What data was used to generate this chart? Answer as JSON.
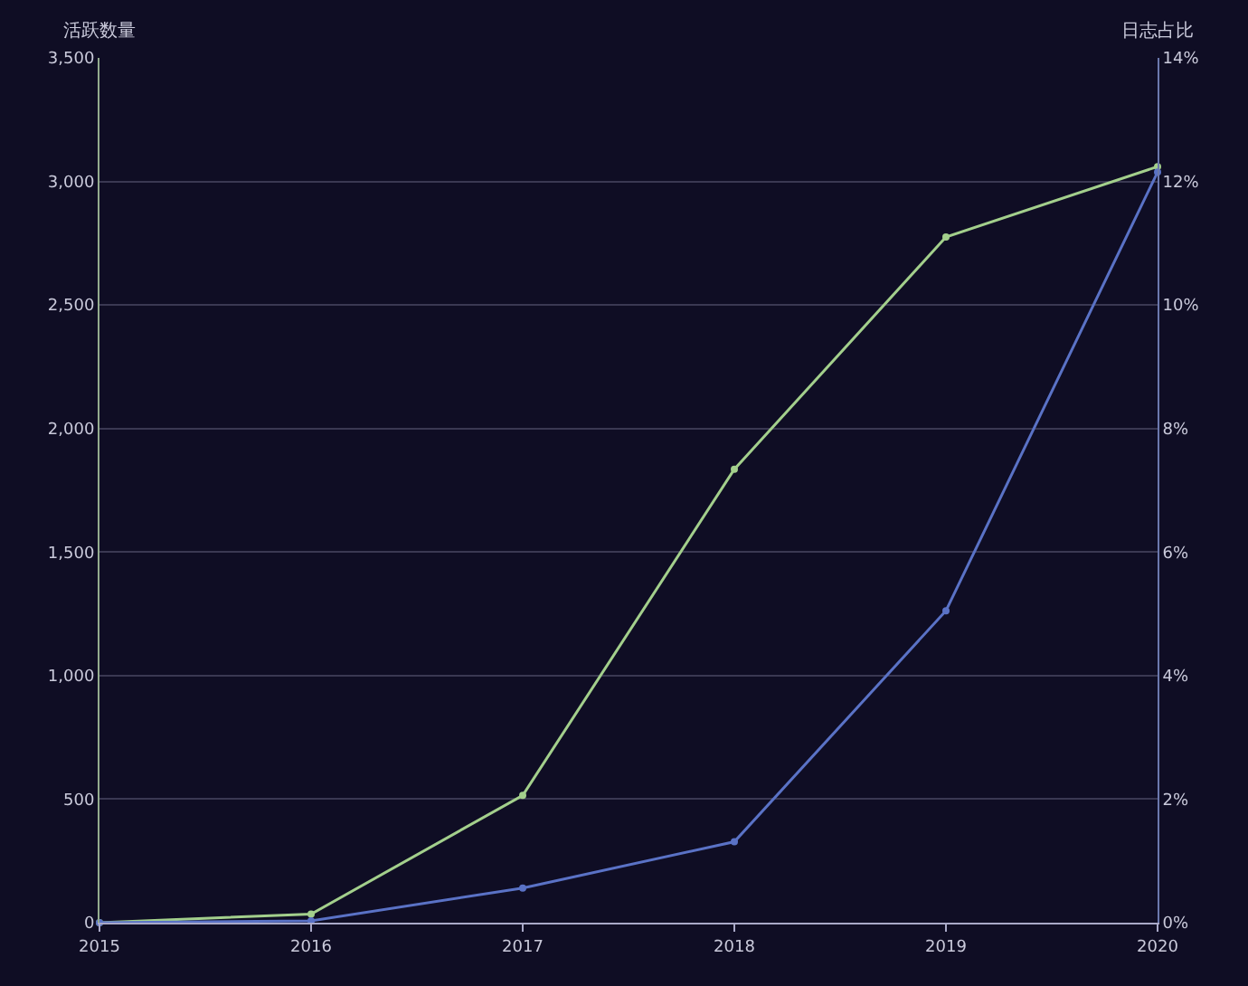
{
  "chart_data": {
    "type": "line",
    "ylabel": "活跃数量",
    "y2label": "日志占比",
    "x": [
      2015,
      2016,
      2017,
      2018,
      2019,
      2020
    ],
    "xlim": [
      2015,
      2020
    ],
    "xticks": [
      2015,
      2016,
      2017,
      2018,
      2019,
      2020
    ],
    "ylim": [
      0,
      3500
    ],
    "yticks": [
      0,
      {
        "value": 500,
        "label": "500"
      },
      {
        "value": 1000,
        "label": "1,000"
      },
      {
        "value": 1500,
        "label": "1,500"
      },
      {
        "value": 2000,
        "label": "2,000"
      },
      {
        "value": 2500,
        "label": "2,500"
      },
      {
        "value": 3000,
        "label": "3,000"
      },
      {
        "value": 3500,
        "label": "3,500"
      }
    ],
    "y2lim": [
      0,
      14
    ],
    "y2ticks": [
      {
        "value": 0,
        "label": "0%"
      },
      {
        "value": 2,
        "label": "2%"
      },
      {
        "value": 4,
        "label": "4%"
      },
      {
        "value": 6,
        "label": "6%"
      },
      {
        "value": 8,
        "label": "8%"
      },
      {
        "value": 10,
        "label": "10%"
      },
      {
        "value": 12,
        "label": "12%"
      },
      {
        "value": 14,
        "label": "14%"
      }
    ],
    "grid": "y",
    "marker": "circle",
    "line_style": "solid",
    "series": [
      {
        "color": "#a3cf8c",
        "values": [
          0,
          35,
          515,
          1835,
          2775,
          3060
        ]
      },
      {
        "color": "#5a72c6",
        "axis": "y2",
        "values": [
          0,
          0.03,
          0.56,
          1.31,
          5.05,
          12.15
        ]
      }
    ]
  }
}
